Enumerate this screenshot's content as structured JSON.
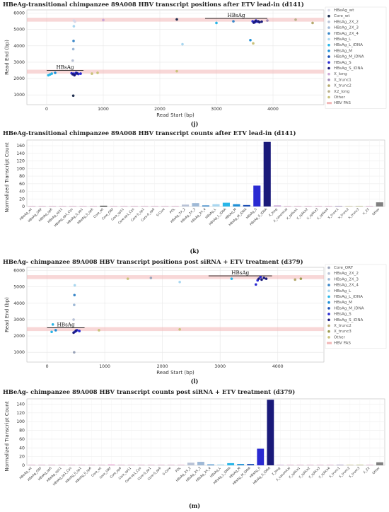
{
  "panel_labels": [
    "(j)",
    "(k)",
    "(l)",
    "(m)"
  ],
  "colors": {
    "HBeAg_wt": "#d8d8e8",
    "Core_wt": "#1f2f4f",
    "Core_ORF": "#9aa3b8",
    "HBsAg_2X_2": "#b8c2d6",
    "HBsAg_2X_3": "#9fb9d6",
    "HBsAg_2X_4": "#3a87c8",
    "HBsAg_L": "#a9d7f0",
    "HBsAg_L_iDNA": "#29b6e8",
    "HBsAg_M": "#1e8fd6",
    "HBsAg_M_iDNA": "#1b4fb5",
    "HBsAg_S": "#2a2ad2",
    "HBsAg_S_iDNA": "#1a1a7a",
    "X_long": "#caa6d6",
    "X_trunc1": "#9f8ab8",
    "X_trunc2": "#b5a96e",
    "X_trunc3": "#9b9b4e",
    "X2_long": "#b9b08a",
    "Other": "#c9c27a",
    "HBV_PAS": "#f2b6b6",
    "bar_default": "#d9a7c7",
    "bar_other": "#808080"
  },
  "chart_data": [
    {
      "type": "scatter",
      "title": "HBeAg-transitional chimpanzee 89A008 HBV transcript positions after ETV lead-in (d141)",
      "xlabel": "Read Start (bp)",
      "ylabel": "Read End (bp)",
      "xlim": [
        -350,
        4900
      ],
      "ylim": [
        400,
        6200
      ],
      "xticks": [
        0,
        1000,
        2000,
        3000,
        4000
      ],
      "yticks": [
        1000,
        2000,
        3000,
        4000,
        5000,
        6000
      ],
      "grid": true,
      "legend_position": "right",
      "pas_bands": [
        2420,
        5600
      ],
      "annotations": [
        {
          "text": "HBsAg",
          "x0": 0,
          "x1": 650,
          "y": 2500
        },
        {
          "text": "HBsAg",
          "x0": 2800,
          "x1": 3900,
          "y": 5680
        }
      ],
      "legend": [
        "HBeAg_wt",
        "Core_wt",
        "HBsAg_2X_2",
        "HBsAg_2X_3",
        "HBsAg_2X_4",
        "HBsAg_L",
        "HBsAg_L_iDNA",
        "HBsAg_M",
        "HBsAg_M_iDNA",
        "HBsAg_S",
        "HBsAg_S_iDNA",
        "X_long",
        "X_trunc1",
        "X_trunc2",
        "X2_long",
        "Other",
        "HBV PAS"
      ],
      "legend_keys": [
        "HBeAg_wt",
        "Core_wt",
        "HBsAg_2X_2",
        "HBsAg_2X_3",
        "HBsAg_2X_4",
        "HBsAg_L",
        "HBsAg_L_iDNA",
        "HBsAg_M",
        "HBsAg_M_iDNA",
        "HBsAg_S",
        "HBsAg_S_iDNA",
        "X_long",
        "X_trunc1",
        "X_trunc2",
        "X2_long",
        "Other",
        "HBV_PAS"
      ],
      "points": [
        {
          "s": "HBeAg_wt",
          "x": 480,
          "y": 5550
        },
        {
          "s": "HBeAg_wt",
          "x": 500,
          "y": 5480
        },
        {
          "s": "Core_wt",
          "x": 2300,
          "y": 5620
        },
        {
          "s": "Core_wt",
          "x": 470,
          "y": 950
        },
        {
          "s": "HBsAg_2X_2",
          "x": 460,
          "y": 3100
        },
        {
          "s": "HBsAg_2X_3",
          "x": 470,
          "y": 3800
        },
        {
          "s": "HBsAg_2X_4",
          "x": 475,
          "y": 4300
        },
        {
          "s": "HBsAg_2X_4",
          "x": 3300,
          "y": 5500
        },
        {
          "s": "HBsAg_L",
          "x": 480,
          "y": 5200
        },
        {
          "s": "HBsAg_L",
          "x": 2400,
          "y": 4100
        },
        {
          "s": "HBsAg_L_iDNA",
          "x": 60,
          "y": 2250
        },
        {
          "s": "HBsAg_L_iDNA",
          "x": 90,
          "y": 2300
        },
        {
          "s": "HBsAg_L_iDNA",
          "x": 30,
          "y": 2200
        },
        {
          "s": "HBsAg_L_iDNA",
          "x": 3000,
          "y": 5400
        },
        {
          "s": "HBsAg_M",
          "x": 150,
          "y": 2350
        },
        {
          "s": "HBsAg_M",
          "x": 3600,
          "y": 4350
        },
        {
          "s": "HBsAg_M_iDNA",
          "x": 470,
          "y": 2280
        },
        {
          "s": "HBsAg_M_iDNA",
          "x": 540,
          "y": 2330
        },
        {
          "s": "HBsAg_S",
          "x": 480,
          "y": 2300
        },
        {
          "s": "HBsAg_S",
          "x": 500,
          "y": 2250
        },
        {
          "s": "HBsAg_S",
          "x": 520,
          "y": 2350
        },
        {
          "s": "HBsAg_S",
          "x": 440,
          "y": 2320
        },
        {
          "s": "HBsAg_S",
          "x": 560,
          "y": 2280
        },
        {
          "s": "HBsAg_S",
          "x": 600,
          "y": 2300
        },
        {
          "s": "HBsAg_S",
          "x": 3640,
          "y": 5500
        },
        {
          "s": "HBsAg_S",
          "x": 3680,
          "y": 5450
        },
        {
          "s": "HBsAg_S",
          "x": 3700,
          "y": 5550
        },
        {
          "s": "HBsAg_S",
          "x": 3720,
          "y": 5480
        },
        {
          "s": "HBsAg_S_iDNA",
          "x": 460,
          "y": 2260
        },
        {
          "s": "HBsAg_S_iDNA",
          "x": 490,
          "y": 2200
        },
        {
          "s": "HBsAg_S_iDNA",
          "x": 530,
          "y": 2310
        },
        {
          "s": "HBsAg_S_iDNA",
          "x": 3660,
          "y": 5420
        },
        {
          "s": "HBsAg_S_iDNA",
          "x": 3690,
          "y": 5520
        },
        {
          "s": "HBsAg_S_iDNA",
          "x": 3740,
          "y": 5500
        },
        {
          "s": "HBsAg_S_iDNA",
          "x": 3760,
          "y": 5440
        },
        {
          "s": "HBsAg_S_iDNA",
          "x": 3800,
          "y": 5480
        },
        {
          "s": "X_long",
          "x": 1000,
          "y": 5580
        },
        {
          "s": "X_trunc1",
          "x": 3900,
          "y": 5550
        },
        {
          "s": "X_trunc2",
          "x": 4700,
          "y": 5400
        },
        {
          "s": "X2_long",
          "x": 4400,
          "y": 5600
        },
        {
          "s": "Other",
          "x": 800,
          "y": 2300
        },
        {
          "s": "Other",
          "x": 900,
          "y": 2350
        },
        {
          "s": "Other",
          "x": 2300,
          "y": 2450
        },
        {
          "s": "Other",
          "x": 3650,
          "y": 4150
        }
      ]
    },
    {
      "type": "bar",
      "title": "HBeAg-transitional chimpanzee 89A008 HBV transcript counts after ETV lead-in (d141)",
      "ylabel": "Normalized Transcript Count",
      "ylim": [
        0,
        175
      ],
      "yticks": [
        0,
        20,
        40,
        60,
        80,
        100,
        120,
        140,
        160
      ],
      "categories": [
        "HBeAg_wt",
        "HBeAg_ORF",
        "HBeAg_sp6",
        "HBeAg_sp11",
        "HBeAg_sp1_Cys",
        "HBeAg_S_sp1",
        "HBeAg_S_sp6",
        "Core_wt",
        "Core_ORF",
        "Core_sp11",
        "Core-sp1_Cys",
        "Core-S_sp1",
        "Core-S_sp6",
        "S-Core",
        "POL",
        "HBsAg_2X_2",
        "HBsAg_2X_3",
        "HBsAg_2X_4",
        "HBsAg_L",
        "HBsAg_L_iDNA",
        "HBsAg_M",
        "HBsAg_M_iDNA",
        "HBsAg_S",
        "HBsAg_S_iDNA",
        "X_long",
        "X_canonical",
        "X_splice1",
        "X_splice2",
        "X_splice3",
        "X_splice4",
        "X_trunc1",
        "X_trunc2",
        "X_trunc3",
        "X_2X",
        "Other"
      ],
      "values": [
        0,
        0,
        0,
        0,
        0,
        0,
        0,
        2,
        0,
        0,
        0,
        0,
        0,
        0,
        0,
        5,
        9,
        3,
        6,
        10,
        6,
        4,
        55,
        170,
        3,
        0,
        0,
        0,
        0,
        0,
        0,
        1,
        1,
        0,
        11
      ],
      "bar_colors": [
        "#d9a7c7",
        "#d9a7c7",
        "#d9a7c7",
        "#d9a7c7",
        "#d9a7c7",
        "#d9a7c7",
        "#d9a7c7",
        "#111111",
        "#d9a7c7",
        "#d9a7c7",
        "#d9a7c7",
        "#d9a7c7",
        "#d9a7c7",
        "#d9a7c7",
        "#d9a7c7",
        "#b8c2d6",
        "#9fb9d6",
        "#3a87c8",
        "#a9d7f0",
        "#29b6e8",
        "#1e8fd6",
        "#1b4fb5",
        "#2a2ad2",
        "#1a1a7a",
        "#caa6d6",
        "#d9a7c7",
        "#d9a7c7",
        "#d9a7c7",
        "#d9a7c7",
        "#d9a7c7",
        "#9f8ab8",
        "#b5a96e",
        "#9b9b4e",
        "#d9a7c7",
        "#808080"
      ]
    },
    {
      "type": "scatter",
      "title": "HBeAg- chimpanzee 89A008 HBV transcript positions post siRNA + ETV treatment (d379)",
      "xlabel": "Read Start (bp)",
      "ylabel": "Read End (bp)",
      "xlim": [
        -350,
        4800
      ],
      "ylim": [
        400,
        6200
      ],
      "xticks": [
        0,
        1000,
        2000,
        3000,
        4000
      ],
      "yticks": [
        1000,
        2000,
        3000,
        4000,
        5000,
        6000
      ],
      "grid": true,
      "legend_position": "right",
      "pas_bands": [
        2420,
        5600
      ],
      "annotations": [
        {
          "text": "HBsAg",
          "x0": 0,
          "x1": 650,
          "y": 2500
        },
        {
          "text": "HBsAg",
          "x0": 2800,
          "x1": 3900,
          "y": 5680
        }
      ],
      "legend": [
        "Core_ORF",
        "HBsAg_2X_2",
        "HBsAg_2X_3",
        "HBsAg_2X_4",
        "HBsAg_L",
        "HBsAg_L_iDNA",
        "HBsAg_M",
        "HBsAg_M_iDNA",
        "HBsAg_S",
        "HBsAg_S_iDNA",
        "X_trunc2",
        "X_trunc3",
        "Other",
        "HBV PAS"
      ],
      "legend_keys": [
        "Core_ORF",
        "HBsAg_2X_2",
        "HBsAg_2X_3",
        "HBsAg_2X_4",
        "HBsAg_L",
        "HBsAg_L_iDNA",
        "HBsAg_M",
        "HBsAg_M_iDNA",
        "HBsAg_S",
        "HBsAg_S_iDNA",
        "X_trunc2",
        "X_trunc3",
        "Other",
        "HBV_PAS"
      ],
      "points": [
        {
          "s": "Core_ORF",
          "x": 1800,
          "y": 5550
        },
        {
          "s": "Core_ORF",
          "x": 470,
          "y": 1000
        },
        {
          "s": "HBsAg_2X_2",
          "x": 460,
          "y": 3000
        },
        {
          "s": "HBsAg_2X_3",
          "x": 470,
          "y": 3900
        },
        {
          "s": "HBsAg_2X_4",
          "x": 475,
          "y": 4500
        },
        {
          "s": "HBsAg_L",
          "x": 480,
          "y": 5100
        },
        {
          "s": "HBsAg_L",
          "x": 2300,
          "y": 5300
        },
        {
          "s": "HBsAg_L_iDNA",
          "x": 80,
          "y": 2250
        },
        {
          "s": "HBsAg_L_iDNA",
          "x": 100,
          "y": 2700
        },
        {
          "s": "HBsAg_L_iDNA",
          "x": 3200,
          "y": 5500
        },
        {
          "s": "HBsAg_M",
          "x": 150,
          "y": 2350
        },
        {
          "s": "HBsAg_M_iDNA",
          "x": 500,
          "y": 2300
        },
        {
          "s": "HBsAg_S",
          "x": 480,
          "y": 2250
        },
        {
          "s": "HBsAg_S",
          "x": 520,
          "y": 2350
        },
        {
          "s": "HBsAg_S",
          "x": 560,
          "y": 2300
        },
        {
          "s": "HBsAg_S",
          "x": 3650,
          "y": 5400
        },
        {
          "s": "HBsAg_S",
          "x": 3700,
          "y": 5600
        },
        {
          "s": "HBsAg_S",
          "x": 3620,
          "y": 5150
        },
        {
          "s": "HBsAg_S_iDNA",
          "x": 460,
          "y": 2200
        },
        {
          "s": "HBsAg_S_iDNA",
          "x": 500,
          "y": 2320
        },
        {
          "s": "HBsAg_S_iDNA",
          "x": 3670,
          "y": 5500
        },
        {
          "s": "HBsAg_S_iDNA",
          "x": 3720,
          "y": 5450
        },
        {
          "s": "HBsAg_S_iDNA",
          "x": 3760,
          "y": 5550
        },
        {
          "s": "HBsAg_S_iDNA",
          "x": 3800,
          "y": 5500
        },
        {
          "s": "X_trunc2",
          "x": 4300,
          "y": 5450
        },
        {
          "s": "X_trunc3",
          "x": 4400,
          "y": 5500
        },
        {
          "s": "Other",
          "x": 900,
          "y": 2350
        },
        {
          "s": "Other",
          "x": 1400,
          "y": 5500
        },
        {
          "s": "Other",
          "x": 2300,
          "y": 2400
        }
      ]
    },
    {
      "type": "bar",
      "title": "HBeAg- chimpanzee 89A008 HBV transcript counts post siRNA + ETV treatment (d379)",
      "ylabel": "Normalized Transcript Count",
      "ylim": [
        0,
        152
      ],
      "yticks": [
        0,
        20,
        40,
        60,
        80,
        100,
        120,
        140
      ],
      "categories": [
        "HBeAg_wt",
        "HBeAg_ORF",
        "HBeAg_sp6",
        "HBeAg_sp11",
        "HBeAg_sp1_Cys",
        "HBeAg_S_sp1",
        "HBeAg_S_sp6",
        "Core_wt",
        "Core_ORF",
        "Core_sp6",
        "Core_sp11",
        "Core-sp1_Cys",
        "Core-S_sp1",
        "Core-S_sp6",
        "S-Core",
        "POL",
        "HBsAg_2X_2",
        "HBsAg_2X_3",
        "HBsAg_2X_4",
        "HBsAg_L",
        "HBsAg_L_iDNA",
        "HBsAg_M",
        "HBsAg_M_iDNA",
        "HBsAg_S",
        "HBsAg_S_iDNA",
        "X_long",
        "X_canonical",
        "X_splice1",
        "X_splice2",
        "X_splice3",
        "X_splice4",
        "X_trunc1",
        "X_trunc2",
        "X_trunc3",
        "X_2X",
        "Other"
      ],
      "values": [
        0,
        0,
        0,
        0,
        0,
        0,
        0,
        0,
        2,
        0,
        0,
        0,
        0,
        0,
        0,
        0,
        6,
        8,
        2,
        2,
        5,
        3,
        3,
        38,
        150,
        0,
        0,
        0,
        0,
        0,
        0,
        0,
        1,
        1,
        0,
        7
      ],
      "bar_colors": [
        "#d9a7c7",
        "#d9a7c7",
        "#d9a7c7",
        "#d9a7c7",
        "#d9a7c7",
        "#d9a7c7",
        "#d9a7c7",
        "#d9a7c7",
        "#e79fcf",
        "#d9a7c7",
        "#d9a7c7",
        "#d9a7c7",
        "#d9a7c7",
        "#d9a7c7",
        "#d9a7c7",
        "#d9a7c7",
        "#b8c2d6",
        "#9fb9d6",
        "#3a87c8",
        "#a9d7f0",
        "#29b6e8",
        "#1e8fd6",
        "#1b4fb5",
        "#2a2ad2",
        "#1a1a7a",
        "#caa6d6",
        "#d9a7c7",
        "#d9a7c7",
        "#d9a7c7",
        "#d9a7c7",
        "#d9a7c7",
        "#9f8ab8",
        "#b5a96e",
        "#9b9b4e",
        "#d9a7c7",
        "#808080"
      ]
    }
  ]
}
